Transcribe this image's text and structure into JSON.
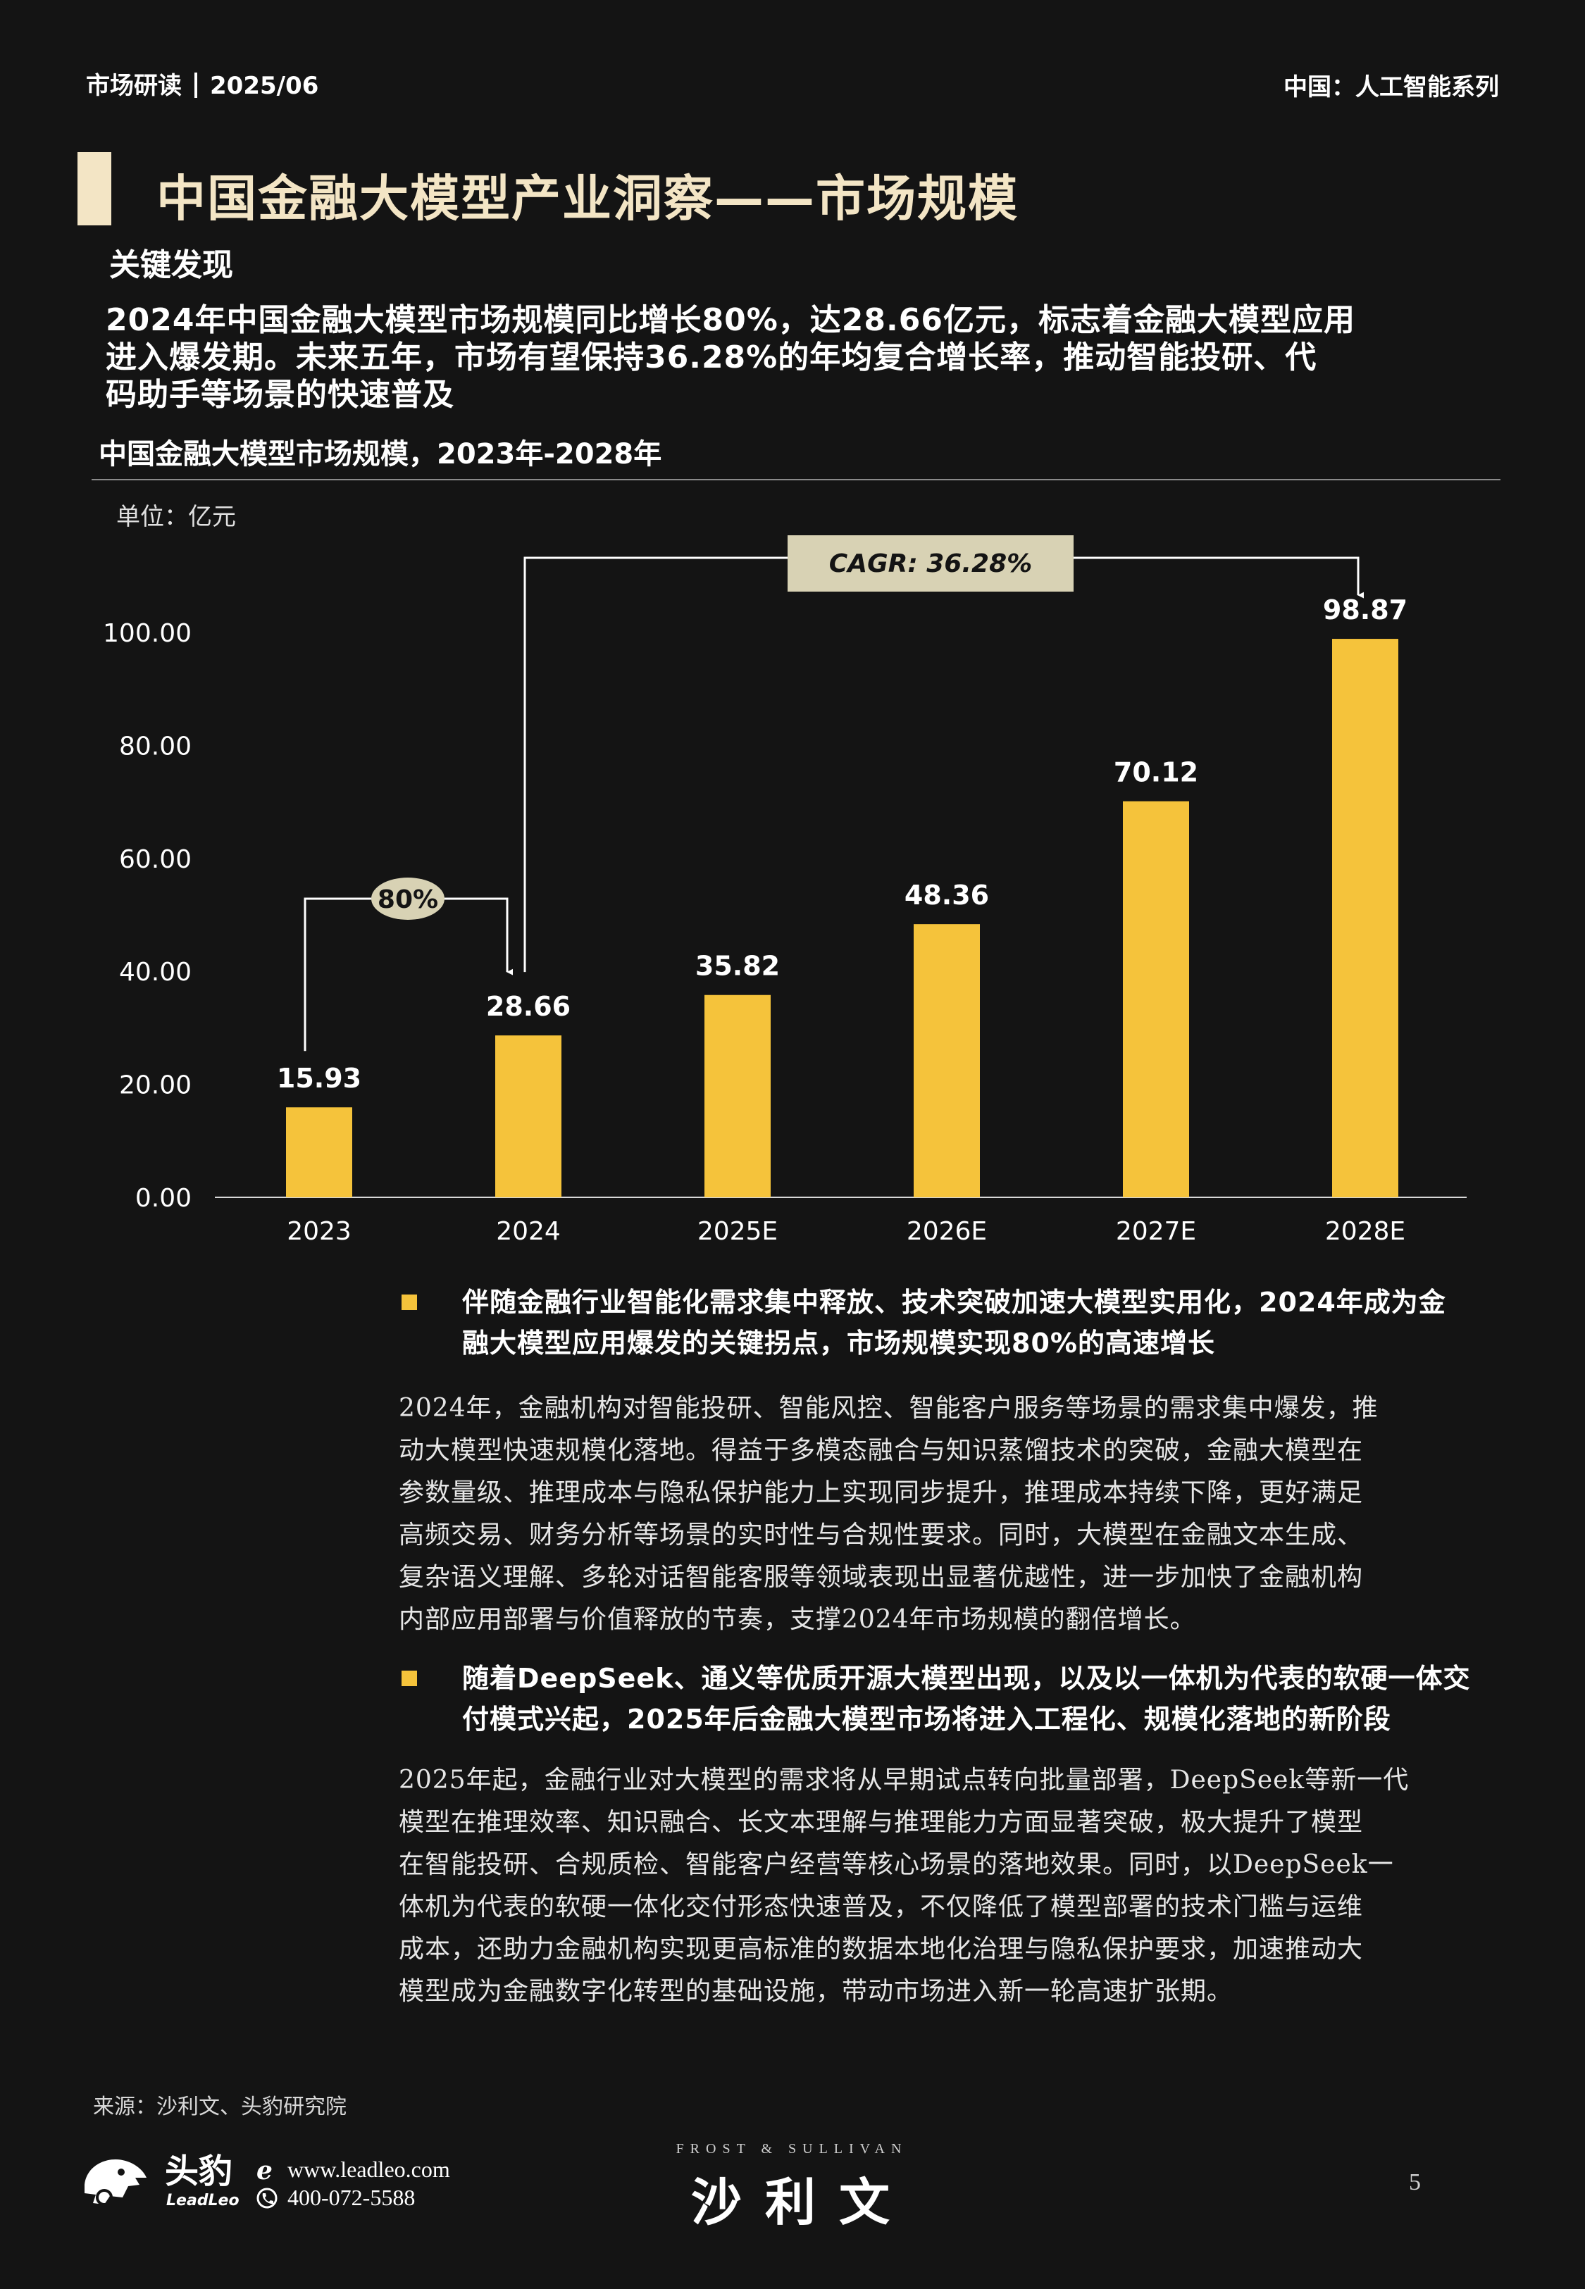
{
  "header": {
    "left_a": "市场研读",
    "left_b": "2025/06",
    "right": "中国：人工智能系列"
  },
  "title": "中国金融大模型产业洞察——市场规模",
  "key_findings_label": "关键发现",
  "summary_lines": [
    "2024年中国金融大模型市场规模同比增长80%，达28.66亿元，标志着金融大模型应用",
    "进入爆发期。未来五年，市场有望保持36.28%的年均复合增长率，推动智能投研、代",
    "码助手等场景的快速普及"
  ],
  "chart_title": "中国金融大模型市场规模，2023年-2028年",
  "unit_label": "单位：亿元",
  "chart_data": {
    "type": "bar",
    "categories": [
      "2023",
      "2024",
      "2025E",
      "2026E",
      "2027E",
      "2028E"
    ],
    "values": [
      15.93,
      28.66,
      35.82,
      48.36,
      70.12,
      98.87
    ],
    "value_labels": [
      "15.93",
      "28.66",
      "35.82",
      "48.36",
      "70.12",
      "98.87"
    ],
    "y_ticks": [
      "0.00",
      "20.00",
      "40.00",
      "60.00",
      "80.00",
      "100.00"
    ],
    "ylim": [
      0,
      100
    ],
    "bar_color": "#f5c33b",
    "annotations": {
      "growth_2024": "80%",
      "cagr": "CAGR: 36.28%"
    }
  },
  "bullets": [
    {
      "heading_lines": [
        "伴随金融行业智能化需求集中释放、技术突破加速大模型实用化，2024年成为金",
        "融大模型应用爆发的关键拐点，市场规模实现80%的高速增长"
      ],
      "body_lines": [
        "2024年，金融机构对智能投研、智能风控、智能客户服务等场景的需求集中爆发，推",
        "动大模型快速规模化落地。得益于多模态融合与知识蒸馏技术的突破，金融大模型在",
        "参数量级、推理成本与隐私保护能力上实现同步提升，推理成本持续下降，更好满足",
        "高频交易、财务分析等场景的实时性与合规性要求。同时，大模型在金融文本生成、",
        "复杂语义理解、多轮对话智能客服等领域表现出显著优越性，进一步加快了金融机构",
        "内部应用部署与价值释放的节奏，支撑2024年市场规模的翻倍增长。"
      ]
    },
    {
      "heading_lines": [
        "随着DeepSeek、通义等优质开源大模型出现，以及以一体机为代表的软硬一体交",
        "付模式兴起，2025年后金融大模型市场将进入工程化、规模化落地的新阶段"
      ],
      "body_lines": [
        "2025年起，金融行业对大模型的需求将从早期试点转向批量部署，DeepSeek等新一代",
        "模型在推理效率、知识融合、长文本理解与推理能力方面显著突破，极大提升了模型",
        "在智能投研、合规质检、智能客户经营等核心场景的落地效果。同时，以DeepSeek一",
        "体机为代表的软硬一体化交付形态快速普及，不仅降低了模型部署的技术门槛与运维",
        "成本，还助力金融机构实现更高标准的数据本地化治理与隐私保护要求，加速推动大",
        "模型成为金融数字化转型的基础设施，带动市场进入新一轮高速扩张期。"
      ]
    }
  ],
  "source": "来源：沙利文、头豹研究院",
  "footer": {
    "brand_cn": "头豹",
    "brand_en": "LeadLeo",
    "website": "www.leadleo.com",
    "phone": "400-072-5588",
    "partner_en": "FROST & SULLIVAN",
    "partner_cn": "沙 利 文",
    "page_number": "5"
  }
}
